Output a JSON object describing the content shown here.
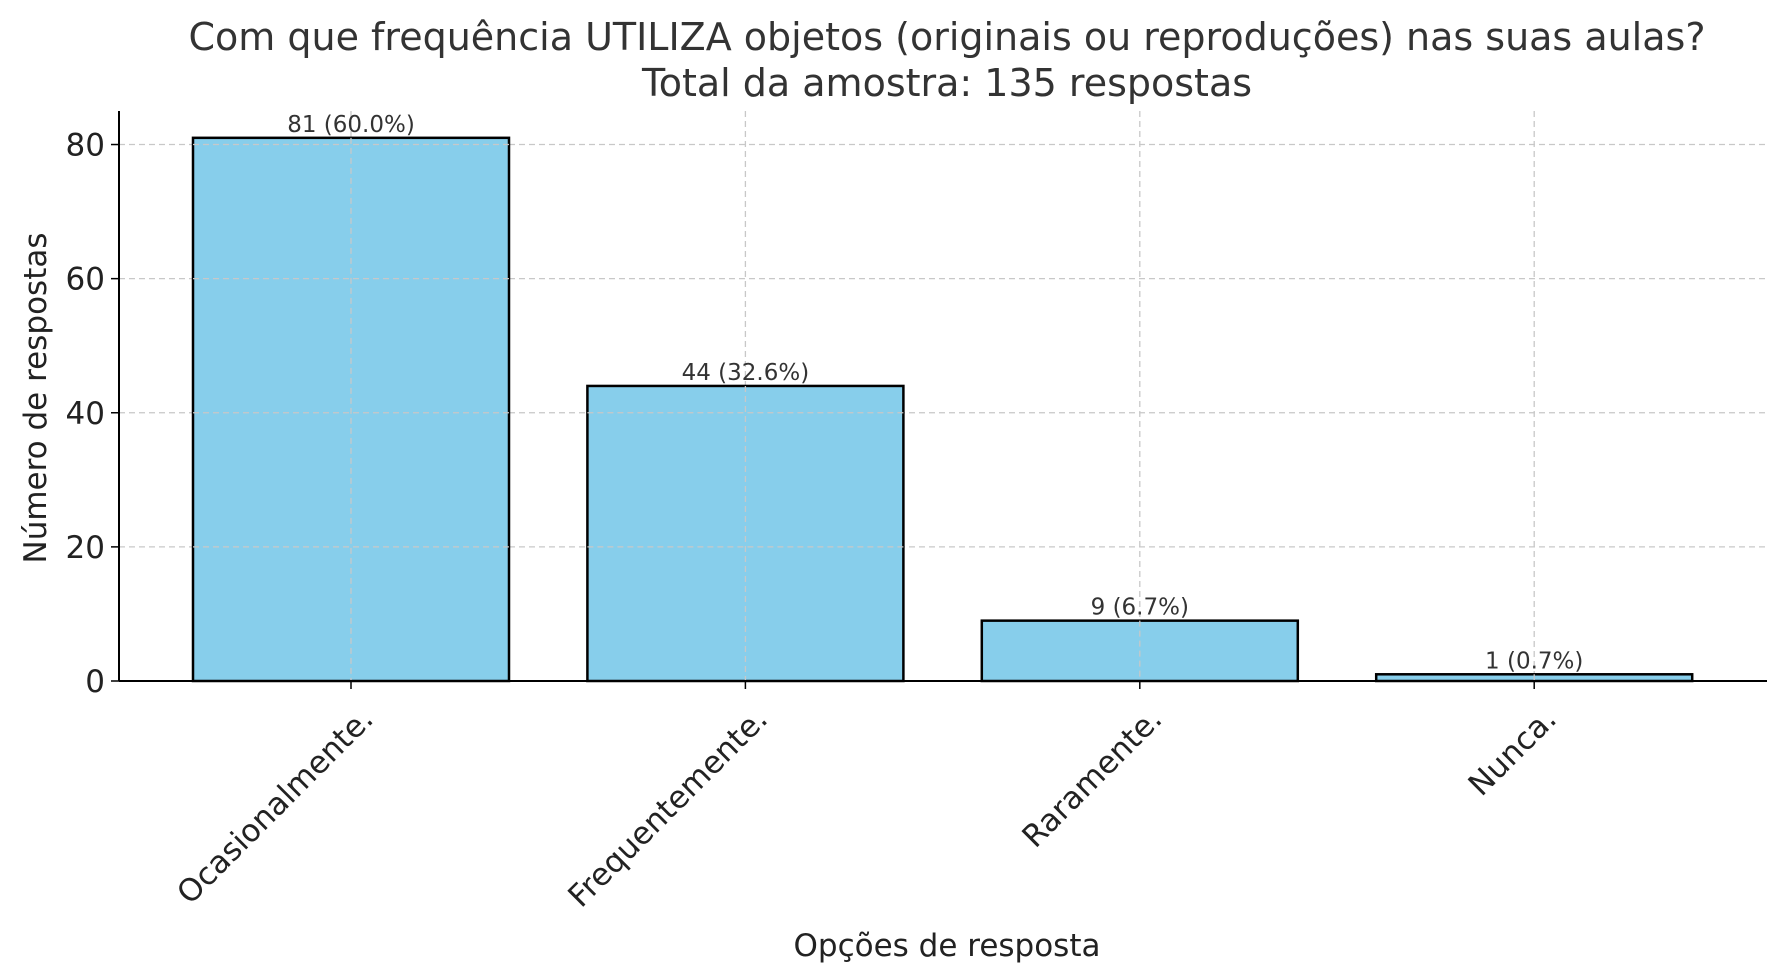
{
  "chart_data": {
    "type": "bar",
    "title_lines": [
      "Com que frequência UTILIZA objetos (originais ou reproduções) nas suas aulas?",
      "Total da amostra: 135 respostas"
    ],
    "xlabel": "Opções de resposta",
    "ylabel": "Número de respostas",
    "categories": [
      "Ocasionalmente.",
      "Frequentemente.",
      "Raramente.",
      "Nunca."
    ],
    "values": [
      81,
      44,
      9,
      1
    ],
    "data_labels": [
      "81 (60.0%)",
      "44 (32.6%)",
      "9 (6.7%)",
      "1 (0.7%)"
    ],
    "yticks": [
      0,
      20,
      40,
      60,
      80
    ],
    "ytick_labels": [
      "0",
      "20",
      "40",
      "60",
      "80"
    ],
    "ylim": [
      0,
      85
    ],
    "grid": true,
    "bar_color": "#87CEEB",
    "edge_color": "#000000"
  }
}
